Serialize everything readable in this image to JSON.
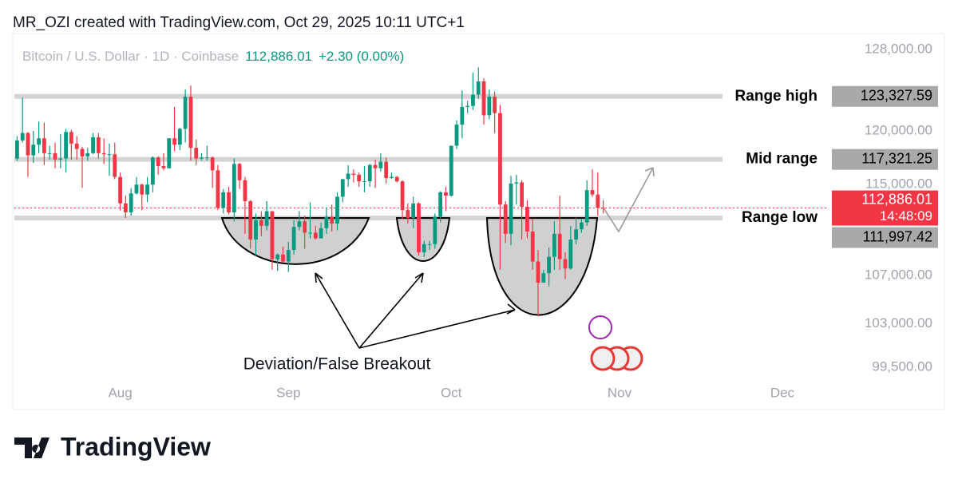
{
  "chart_data": {
    "type": "candlestick",
    "header": "MR_OZI created with TradingView.com, Oct 29, 2025 10:11 UTC+1",
    "symbol": "Bitcoin / U.S. Dollar · 1D · Coinbase",
    "last": "112,886.01",
    "change": "+2.30 (0.00%)",
    "annotation": "Deviation/False Breakout",
    "logo": "TradingView",
    "log_scale": true,
    "up_color": "#089981",
    "down_color": "#f23645",
    "ylim": [
      98373,
      129384
    ],
    "yticks": [
      {
        "value": 128000,
        "label": "128,000.00"
      },
      {
        "value": 120000,
        "label": "120,000.00"
      },
      {
        "value": 115000,
        "label": "115,000.00"
      },
      {
        "value": 107000,
        "label": "107,000.00"
      },
      {
        "value": 103000,
        "label": "103,000.00"
      },
      {
        "value": 99500,
        "label": "99,500.00"
      }
    ],
    "xlim": [
      -0.5,
      149.1
    ],
    "xticks": [
      {
        "value": 19,
        "label": "Aug"
      },
      {
        "value": 50,
        "label": "Sep"
      },
      {
        "value": 80,
        "label": "Oct"
      },
      {
        "value": 111,
        "label": "Nov"
      },
      {
        "value": 141,
        "label": "Dec"
      }
    ],
    "levels": [
      {
        "name": "Range high",
        "value": 123327.59,
        "label": "123,327.59"
      },
      {
        "name": "Mid range",
        "value": 117321.25,
        "label": "117,321.25"
      },
      {
        "name": "Range low",
        "value": 111997.42,
        "label": "111,997.42"
      }
    ],
    "last_price": {
      "value": 112886.01,
      "label": "112,886.01",
      "countdown": "14:48:09"
    },
    "open": [
      117400,
      119100,
      119800,
      117700,
      118700,
      119300,
      117900,
      117900,
      117300,
      117400,
      119900,
      118800,
      118300,
      117600,
      117900,
      119400,
      117900,
      117800,
      117800,
      115700,
      113300,
      112500,
      114200,
      115000,
      114100,
      115000,
      117500,
      116700,
      116500,
      119300,
      118700,
      120200,
      123300,
      118400,
      117400,
      117500,
      117500,
      116300,
      112900,
      114300,
      112500,
      116900,
      115400,
      113500,
      110100,
      111800,
      111300,
      112600,
      108400,
      108800,
      108200,
      109200,
      111200,
      111700,
      110700,
      110700,
      110200,
      111100,
      112100,
      111500,
      113900,
      115500,
      116000,
      115900,
      115300,
      115300,
      116800,
      116500,
      117100,
      115600,
      115700,
      115300,
      112700,
      112000,
      113300,
      109000,
      109700,
      109700,
      112100,
      114300,
      114000,
      118600,
      120600,
      122300,
      122400,
      123500,
      124800,
      121500,
      123300,
      121700,
      113200,
      110600,
      115100,
      115200,
      113000,
      110800,
      108200,
      106400,
      107200,
      108600,
      110600,
      108400,
      107600,
      110100,
      111000,
      111600,
      114500,
      114100,
      112900
    ],
    "high": [
      119500,
      123200,
      119900,
      120000,
      120900,
      120800,
      118600,
      118900,
      119700,
      120200,
      120100,
      119500,
      118500,
      118400,
      119800,
      119800,
      119300,
      118800,
      118900,
      116100,
      114000,
      114700,
      115700,
      115100,
      115700,
      117600,
      117600,
      117900,
      119300,
      122300,
      120300,
      124000,
      124400,
      119200,
      117900,
      118600,
      117600,
      116800,
      114600,
      114800,
      117400,
      117000,
      115700,
      113600,
      112400,
      112600,
      113500,
      112600,
      108900,
      109500,
      109900,
      111800,
      112600,
      112200,
      113400,
      111300,
      111600,
      112900,
      113200,
      114300,
      115500,
      116800,
      116400,
      116100,
      116700,
      116900,
      117300,
      117900,
      117500,
      116100,
      115800,
      115400,
      113300,
      113900,
      113400,
      110000,
      110000,
      112400,
      114400,
      114800,
      118600,
      121000,
      123900,
      122900,
      125700,
      126200,
      125100,
      124000,
      123800,
      122500,
      113500,
      115800,
      115900,
      115400,
      113600,
      111900,
      109200,
      107500,
      109400,
      111700,
      114000,
      109000,
      111300,
      112000,
      111900,
      115400,
      116400,
      116100,
      113600
    ],
    "low": [
      117200,
      118900,
      115700,
      117000,
      117900,
      116800,
      117300,
      116500,
      116500,
      116100,
      117300,
      117300,
      114700,
      117200,
      117800,
      117400,
      116900,
      115800,
      115500,
      112700,
      112000,
      112200,
      114100,
      112700,
      113400,
      114300,
      115900,
      116300,
      116500,
      118100,
      118200,
      118900,
      117200,
      116800,
      117200,
      117200,
      114700,
      112700,
      112400,
      112300,
      111700,
      114600,
      110600,
      109300,
      108700,
      110400,
      110900,
      107500,
      107400,
      108100,
      107300,
      108800,
      110900,
      109300,
      110200,
      110100,
      110200,
      110600,
      110800,
      110900,
      113400,
      114800,
      115200,
      114800,
      114300,
      114800,
      114700,
      116200,
      115100,
      115500,
      115200,
      111900,
      111500,
      111100,
      108700,
      108600,
      109200,
      109300,
      111600,
      112600,
      113900,
      118300,
      119300,
      121700,
      122000,
      123100,
      120600,
      121100,
      119800,
      107500,
      109800,
      109600,
      113200,
      110100,
      110200,
      107500,
      103600,
      106400,
      106100,
      107500,
      107500,
      106700,
      107500,
      109700,
      110700,
      111300,
      113900,
      112200,
      112400
    ],
    "close": [
      119100,
      119800,
      117700,
      118700,
      119300,
      117900,
      117900,
      117300,
      117400,
      119900,
      118800,
      118300,
      117600,
      117900,
      119400,
      117900,
      117800,
      117800,
      115700,
      113300,
      112500,
      114200,
      115000,
      114100,
      115000,
      117500,
      116700,
      116500,
      119300,
      118700,
      120200,
      123300,
      118400,
      117400,
      117500,
      117500,
      116300,
      112900,
      114300,
      112500,
      116900,
      115400,
      113500,
      110100,
      111800,
      111300,
      112600,
      108400,
      108800,
      108200,
      109200,
      111200,
      111700,
      110700,
      110700,
      110200,
      111100,
      112100,
      111500,
      113900,
      115500,
      116000,
      115900,
      115300,
      115300,
      116800,
      116500,
      117100,
      115600,
      115700,
      115300,
      112700,
      112000,
      113300,
      109000,
      109700,
      109700,
      112100,
      114300,
      114000,
      118600,
      120600,
      122300,
      122400,
      123500,
      124800,
      121500,
      123300,
      121700,
      113200,
      110600,
      115100,
      115200,
      113000,
      110800,
      108200,
      106400,
      107200,
      108600,
      110600,
      108400,
      107600,
      110100,
      111000,
      111600,
      114500,
      114100,
      112900,
      112886.01
    ]
  }
}
